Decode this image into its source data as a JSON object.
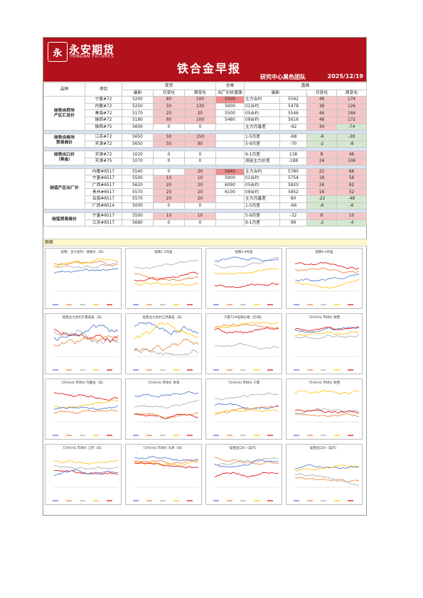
{
  "header": {
    "logo_glyph": "永",
    "brand_cn": "永安期货",
    "brand_en": "YONGAN FUTURES",
    "title": "铁合金早报",
    "team": "研究中心黑色团队",
    "date": "2025/12/19"
  },
  "table": {
    "head1": {
      "variety": "品种",
      "item": "项目",
      "spot": "现货",
      "warehouse": "仓单",
      "futures": "盘面"
    },
    "head2": {
      "latest": "最新",
      "daily": "日变化",
      "weekly": "周变化",
      "factory_parity": "出厂价折盘面",
      "f_latest": "最新",
      "f_daily": "日变化",
      "f_weekly": "周变化"
    },
    "groups": [
      {
        "name": "硅铁自然块\n产区汇总价",
        "rows": [
          {
            "item": "宁夏#72",
            "latest": "5200",
            "daily": "80",
            "weekly": "100",
            "parity": "5500",
            "contract": "主力合约",
            "f_latest": "5592",
            "f_daily": "46",
            "f_weekly": "174"
          },
          {
            "item": "内蒙#72",
            "latest": "5250",
            "daily": "50",
            "weekly": "130",
            "parity": "5600",
            "contract": "01合约",
            "f_latest": "5478",
            "f_daily": "38",
            "f_weekly": "126"
          },
          {
            "item": "青海#72",
            "latest": "5170",
            "daily": "20",
            "weekly": "20",
            "parity": "5500",
            "contract": "05合约",
            "f_latest": "5546",
            "f_daily": "44",
            "f_weekly": "164"
          },
          {
            "item": "陕西#72",
            "latest": "5180",
            "daily": "80",
            "weekly": "100",
            "parity": "5480",
            "contract": "09合约",
            "f_latest": "5616",
            "f_daily": "46",
            "f_weekly": "172"
          },
          {
            "item": "陕西#75",
            "latest": "5600",
            "daily": "0",
            "weekly": "0",
            "parity": "",
            "contract": "主力月基差",
            "f_latest": "-92",
            "f_daily": "34",
            "f_weekly": "-74"
          }
        ]
      },
      {
        "name": "硅铁合格块\n贸易商价",
        "rows": [
          {
            "item": "江苏#72",
            "latest": "5650",
            "daily": "50",
            "weekly": "150",
            "parity": "",
            "contract": "1-5月差",
            "f_latest": "-68",
            "f_daily": "-6",
            "f_weekly": "-38"
          },
          {
            "item": "天津#72",
            "latest": "5650",
            "daily": "50",
            "weekly": "90",
            "parity": "",
            "contract": "5-9月差",
            "f_latest": "-70",
            "f_daily": "-2",
            "f_weekly": "-8"
          }
        ]
      },
      {
        "name": "硅铁出口价\n（美金）",
        "rows": [
          {
            "item": "天津#72",
            "latest": "1020",
            "daily": "0",
            "weekly": "0",
            "parity": "",
            "contract": "9-1月差",
            "f_latest": "138",
            "f_daily": "8",
            "f_weekly": "46"
          },
          {
            "item": "天津#75",
            "latest": "1070",
            "daily": "0",
            "weekly": "0",
            "parity": "",
            "contract": "双硅主力价差",
            "f_latest": "-188",
            "f_daily": "24",
            "f_weekly": "106"
          }
        ]
      },
      {
        "name": "硅锰产区出厂价",
        "rows": [
          {
            "item": "内蒙#6517",
            "latest": "5540",
            "daily": "0",
            "weekly": "20",
            "parity": "5840",
            "contract": "主力合约",
            "f_latest": "5780",
            "f_daily": "22",
            "f_weekly": "68"
          },
          {
            "item": "宁夏#6517",
            "latest": "5500",
            "daily": "10",
            "weekly": "10",
            "parity": "5900",
            "contract": "01合约",
            "f_latest": "5754",
            "f_daily": "18",
            "f_weekly": "56"
          },
          {
            "item": "广西#6517",
            "latest": "5620",
            "daily": "20",
            "weekly": "20",
            "parity": "6090",
            "contract": "05合约",
            "f_latest": "5820",
            "f_daily": "24",
            "f_weekly": "62"
          },
          {
            "item": "贵州#6517",
            "latest": "5570",
            "daily": "20",
            "weekly": "20",
            "parity": "6100",
            "contract": "09合约",
            "f_latest": "5852",
            "f_daily": "16",
            "f_weekly": "52"
          },
          {
            "item": "云南#6517",
            "latest": "5570",
            "daily": "20",
            "weekly": "20",
            "parity": "",
            "contract": "主力月基差",
            "f_latest": "60",
            "f_daily": "-22",
            "f_weekly": "-48"
          },
          {
            "item": "广西#6014",
            "latest": "5000",
            "daily": "0",
            "weekly": "0",
            "parity": "",
            "contract": "1-5月差",
            "f_latest": "-66",
            "f_daily": "-6",
            "f_weekly": "-6"
          }
        ]
      },
      {
        "name": "硅锰贸易商价",
        "rows": [
          {
            "item": "宁夏#6517",
            "latest": "5500",
            "daily": "10",
            "weekly": "10",
            "parity": "",
            "contract": "5-9月差",
            "f_latest": "-32",
            "f_daily": "8",
            "f_weekly": "10"
          },
          {
            "item": "江苏#6517",
            "latest": "5680",
            "daily": "0",
            "weekly": "0",
            "parity": "",
            "contract": "9-1月差",
            "f_latest": "98",
            "f_daily": "-2",
            "f_weekly": "-4"
          }
        ]
      }
    ]
  },
  "figures_label": "图表",
  "series_colors": [
    "#4472c4",
    "#ed7d31",
    "#a5a5a5",
    "#ffc000",
    "#e00000"
  ],
  "charts": [
    {
      "title": "硅铁：主力合约：收盘价（日）"
    },
    {
      "title": "硅铁1-5月差"
    },
    {
      "title": "硅铁5-9月差"
    },
    {
      "title": "硅铁9-1月差"
    },
    {
      "title": "硅铁主力合约宁夏基差（日）"
    },
    {
      "title": "硅铁主力合约江苏基差（日）"
    },
    {
      "title": "宁夏72#硅铁价格（元/吨）"
    },
    {
      "title": "72%FeSi 市场价 陕西"
    },
    {
      "title": "72%FeSi 市场价 内蒙古（日）"
    },
    {
      "title": "72%FeSi 市场价 青海"
    },
    {
      "title": "72%FeSi 市场价 宁夏"
    },
    {
      "title": "75%FeSi 市场价 陕西"
    },
    {
      "title": "72%FeSi 市场价 江苏（日）"
    },
    {
      "title": "72%FeSi 市场价 天津（日）"
    },
    {
      "title": "硅铁出口价（美元）"
    },
    {
      "title": "硅铁出口价（美元）"
    }
  ]
}
